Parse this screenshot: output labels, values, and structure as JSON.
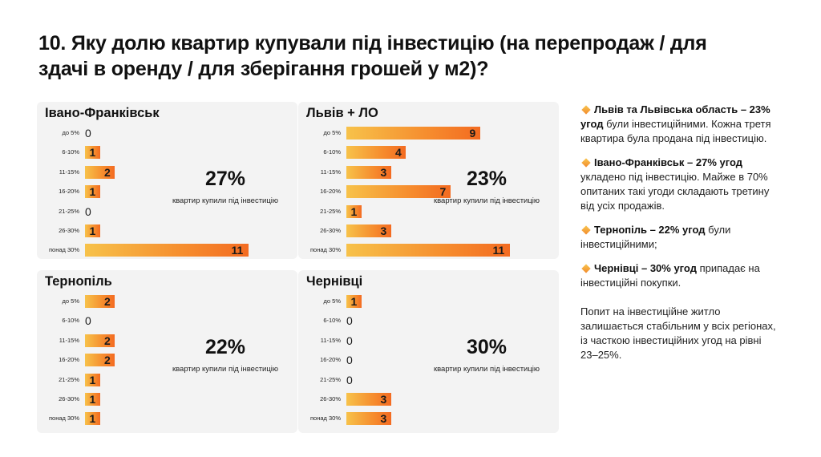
{
  "title": "10. Яку долю квартир купували під інвестицію (на перепродаж / для здачі в оренду / для зберігання грошей у м2)?",
  "chart_data": [
    {
      "type": "bar",
      "title": "Івано-Франківськ",
      "categories": [
        "до 5%",
        "6-10%",
        "11-15%",
        "16-20%",
        "21-25%",
        "26-30%",
        "понад 30%"
      ],
      "values": [
        0,
        1,
        2,
        1,
        0,
        1,
        11
      ],
      "share_value": "27%",
      "share_caption": "квартир купили під інвестицію"
    },
    {
      "type": "bar",
      "title": "Львів + ЛО",
      "categories": [
        "до 5%",
        "6-10%",
        "11-15%",
        "16-20%",
        "21-25%",
        "26-30%",
        "понад 30%"
      ],
      "values": [
        9,
        4,
        3,
        7,
        1,
        3,
        11
      ],
      "share_value": "23%",
      "share_caption": "квартир купили під інвестицію"
    },
    {
      "type": "bar",
      "title": "Тернопіль",
      "categories": [
        "до 5%",
        "6-10%",
        "11-15%",
        "16-20%",
        "21-25%",
        "26-30%",
        "понад 30%"
      ],
      "values": [
        2,
        0,
        2,
        2,
        1,
        1,
        1
      ],
      "share_value": "22%",
      "share_caption": "квартир купили під інвестицію"
    },
    {
      "type": "bar",
      "title": "Чернівці",
      "categories": [
        "до 5%",
        "6-10%",
        "11-15%",
        "16-20%",
        "21-25%",
        "26-30%",
        "понад 30%"
      ],
      "values": [
        1,
        0,
        0,
        0,
        0,
        3,
        3
      ],
      "share_value": "30%",
      "share_caption": "квартир купили під інвестицію"
    }
  ],
  "notes": [
    {
      "bold": "Львів та Львівська область – 23% угод",
      "text": " були інвестиційними. Кожна третя квартира була продана під інвестицію."
    },
    {
      "bold": "Івано-Франківськ – 27% угод",
      "text": " укладено під інвестицію. Майже в 70% опитаних такі угоди складають третину від усіх продажів."
    },
    {
      "bold": "Тернопіль – 22% угод",
      "text": " були інвестиційними;"
    },
    {
      "bold": "Чернівці – 30% угод",
      "text": " припадає на інвестиційні покупки."
    }
  ],
  "summary": "Попит на інвестиційне житло залишається стабільним у всіх регіонах, із часткою інвестиційних угод на рівні 23–25%.",
  "colors": {
    "bar_start": "#f7c24a",
    "bar_end": "#f36b21",
    "panel_bg": "#f3f3f3"
  }
}
